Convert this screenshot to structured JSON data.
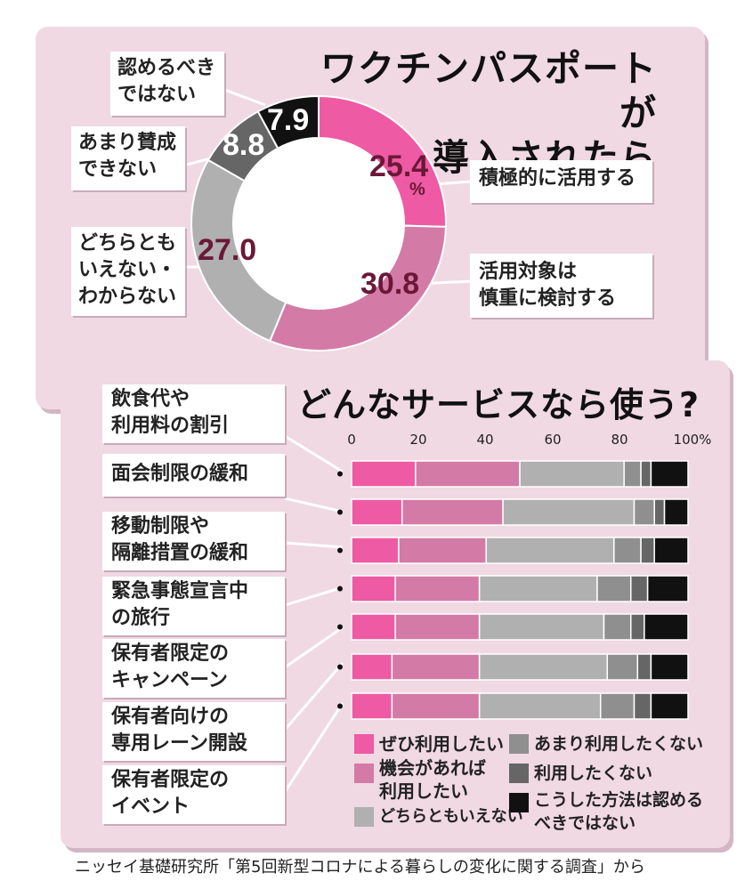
{
  "colors": {
    "s1": "#ee5aa3",
    "s2": "#d47aa6",
    "s3": "#b0b0b0",
    "s4": "#8f8f8f",
    "s5": "#666666",
    "s6": "#111111"
  },
  "chart_data": [
    {
      "type": "pie",
      "title": "ワクチンパスポートが導入されたら",
      "unit": "%",
      "slices": [
        {
          "name": "積極的に活用する",
          "value": 25.4,
          "label": "25.4",
          "color": "#ee5aa3"
        },
        {
          "name": "活用対象は慎重に検討する",
          "value": 30.8,
          "label": "30.8",
          "color": "#d47aa6"
        },
        {
          "name": "どちらともいえない・わからない",
          "value": 27.0,
          "label": "27.0",
          "color": "#b0b0b0"
        },
        {
          "name": "あまり賛成できない",
          "value": 8.8,
          "label": "8.8",
          "color": "#666666"
        },
        {
          "name": "認めるべきではない",
          "value": 7.9,
          "label": "7.9",
          "color": "#111111"
        }
      ]
    },
    {
      "type": "bar",
      "stacked": true,
      "orientation": "horizontal",
      "title": "どんなサービスなら使う?",
      "x_ticks": [
        "0",
        "20",
        "40",
        "60",
        "80",
        "100%"
      ],
      "xlim": [
        0,
        100
      ],
      "categories": [
        {
          "line1": "飲食代や",
          "line2": "利用料の割引"
        },
        {
          "line1": "面会制限の緩和",
          "line2": ""
        },
        {
          "line1": "移動制限や",
          "line2": "隔離措置の緩和"
        },
        {
          "line1": "緊急事態宣言中",
          "line2": "の旅行"
        },
        {
          "line1": "保有者限定の",
          "line2": "キャンペーン"
        },
        {
          "line1": "保有者向けの",
          "line2": "専用レーン開設"
        },
        {
          "line1": "保有者限定の",
          "line2": "イベント"
        }
      ],
      "series": [
        {
          "name": "ぜひ利用したい",
          "color": "#ee5aa3",
          "values": [
            19,
            15,
            14,
            13,
            13,
            12,
            12
          ]
        },
        {
          "name": "機会があれば利用したい",
          "color": "#d47aa6",
          "values": [
            31,
            30,
            26,
            25,
            25,
            26,
            26
          ]
        },
        {
          "name": "どちらともいえない",
          "color": "#b0b0b0",
          "values": [
            31,
            39,
            38,
            35,
            37,
            38,
            36
          ]
        },
        {
          "name": "あまり利用したくない",
          "color": "#8f8f8f",
          "values": [
            5,
            6,
            8,
            10,
            8,
            9,
            10
          ]
        },
        {
          "name": "利用したくない",
          "color": "#666666",
          "values": [
            3,
            3,
            4,
            5,
            4,
            4,
            5
          ]
        },
        {
          "name": "こうした方法は認めるべきではない",
          "color": "#111111",
          "values": [
            11,
            7,
            10,
            12,
            13,
            11,
            11
          ]
        }
      ]
    }
  ],
  "labels": {
    "unit": "%",
    "legend": {
      "s1": "ぜひ利用したい",
      "s2a": "機会があれば",
      "s2b": "利用したい",
      "s3": "どちらともいえない",
      "s4": "あまり利用したくない",
      "s5": "利用したくない",
      "s6a": "こうした方法は認める",
      "s6b": "べきではない"
    },
    "donut_boxes": {
      "b1": "積極的に活用する",
      "b2a": "活用対象は",
      "b2b": "慎重に検討する",
      "b3a": "どちらとも",
      "b3b": "いえない・",
      "b3c": "わからない",
      "b4a": "あまり賛成",
      "b4b": "できない",
      "b5a": "認めるべき",
      "b5b": "ではない"
    },
    "title1a": "ワクチンパスポートが",
    "title1b": "導入されたら",
    "footer": "ニッセイ基礎研究所「第5回新型コロナによる暮らしの変化に関する調査」から"
  }
}
